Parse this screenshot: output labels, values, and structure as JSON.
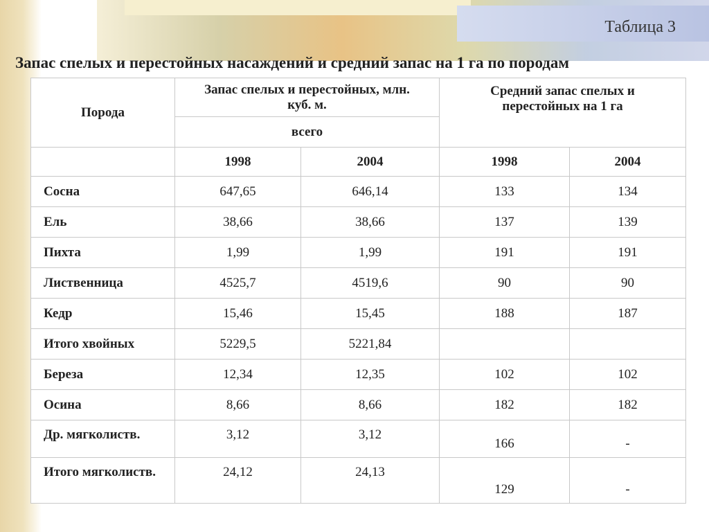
{
  "header": {
    "label": "Таблица 3",
    "title": "Запас спелых и перестойных насаждений и средний запас на 1 га по породам"
  },
  "table": {
    "head": {
      "species": "Порода",
      "stock": "Запас спелых и перестойных, млн. куб. м.",
      "total": "всего",
      "avg": "Средний запас спелых и перестойных на 1 га",
      "years": [
        "1998",
        "2004",
        "1998",
        "2004"
      ]
    },
    "rows": [
      [
        "Сосна",
        "647,65",
        "646,14",
        "133",
        "134"
      ],
      [
        "Ель",
        "38,66",
        "38,66",
        "137",
        "139"
      ],
      [
        "Пихта",
        "1,99",
        "1,99",
        "191",
        "191"
      ],
      [
        "Лиственница",
        "4525,7",
        "4519,6",
        "90",
        "90"
      ],
      [
        "Кедр",
        "15,46",
        "15,45",
        "188",
        "187"
      ],
      [
        "Итого хвойных",
        "5229,5",
        "5221,84",
        null,
        null
      ],
      [
        "Береза",
        "12,34",
        "12,35",
        "102",
        "102"
      ],
      [
        "Осина",
        "8,66",
        "8,66",
        "182",
        "182"
      ],
      [
        "Др. мягколиств.",
        "3,12",
        "3,12",
        "166",
        "-"
      ],
      [
        "Итого мягколиств.",
        "24,12",
        "24,13",
        "129",
        "-"
      ]
    ]
  }
}
